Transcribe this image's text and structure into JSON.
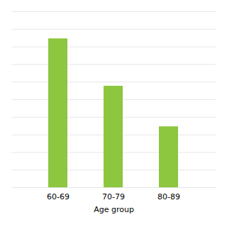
{
  "chart_data": {
    "type": "bar",
    "categories": [
      "60-69",
      "70-79",
      "80-89"
    ],
    "values": [
      22,
      15,
      9
    ],
    "color": "#8dc63f",
    "xlabel": "Age group",
    "ylim": [
      0,
      26
    ],
    "yticks": [
      0,
      2.6,
      5.2,
      7.8,
      10.4,
      13,
      15.6,
      18.2,
      20.8,
      23.4,
      26
    ],
    "grid": true,
    "tick_labels": "x"
  }
}
